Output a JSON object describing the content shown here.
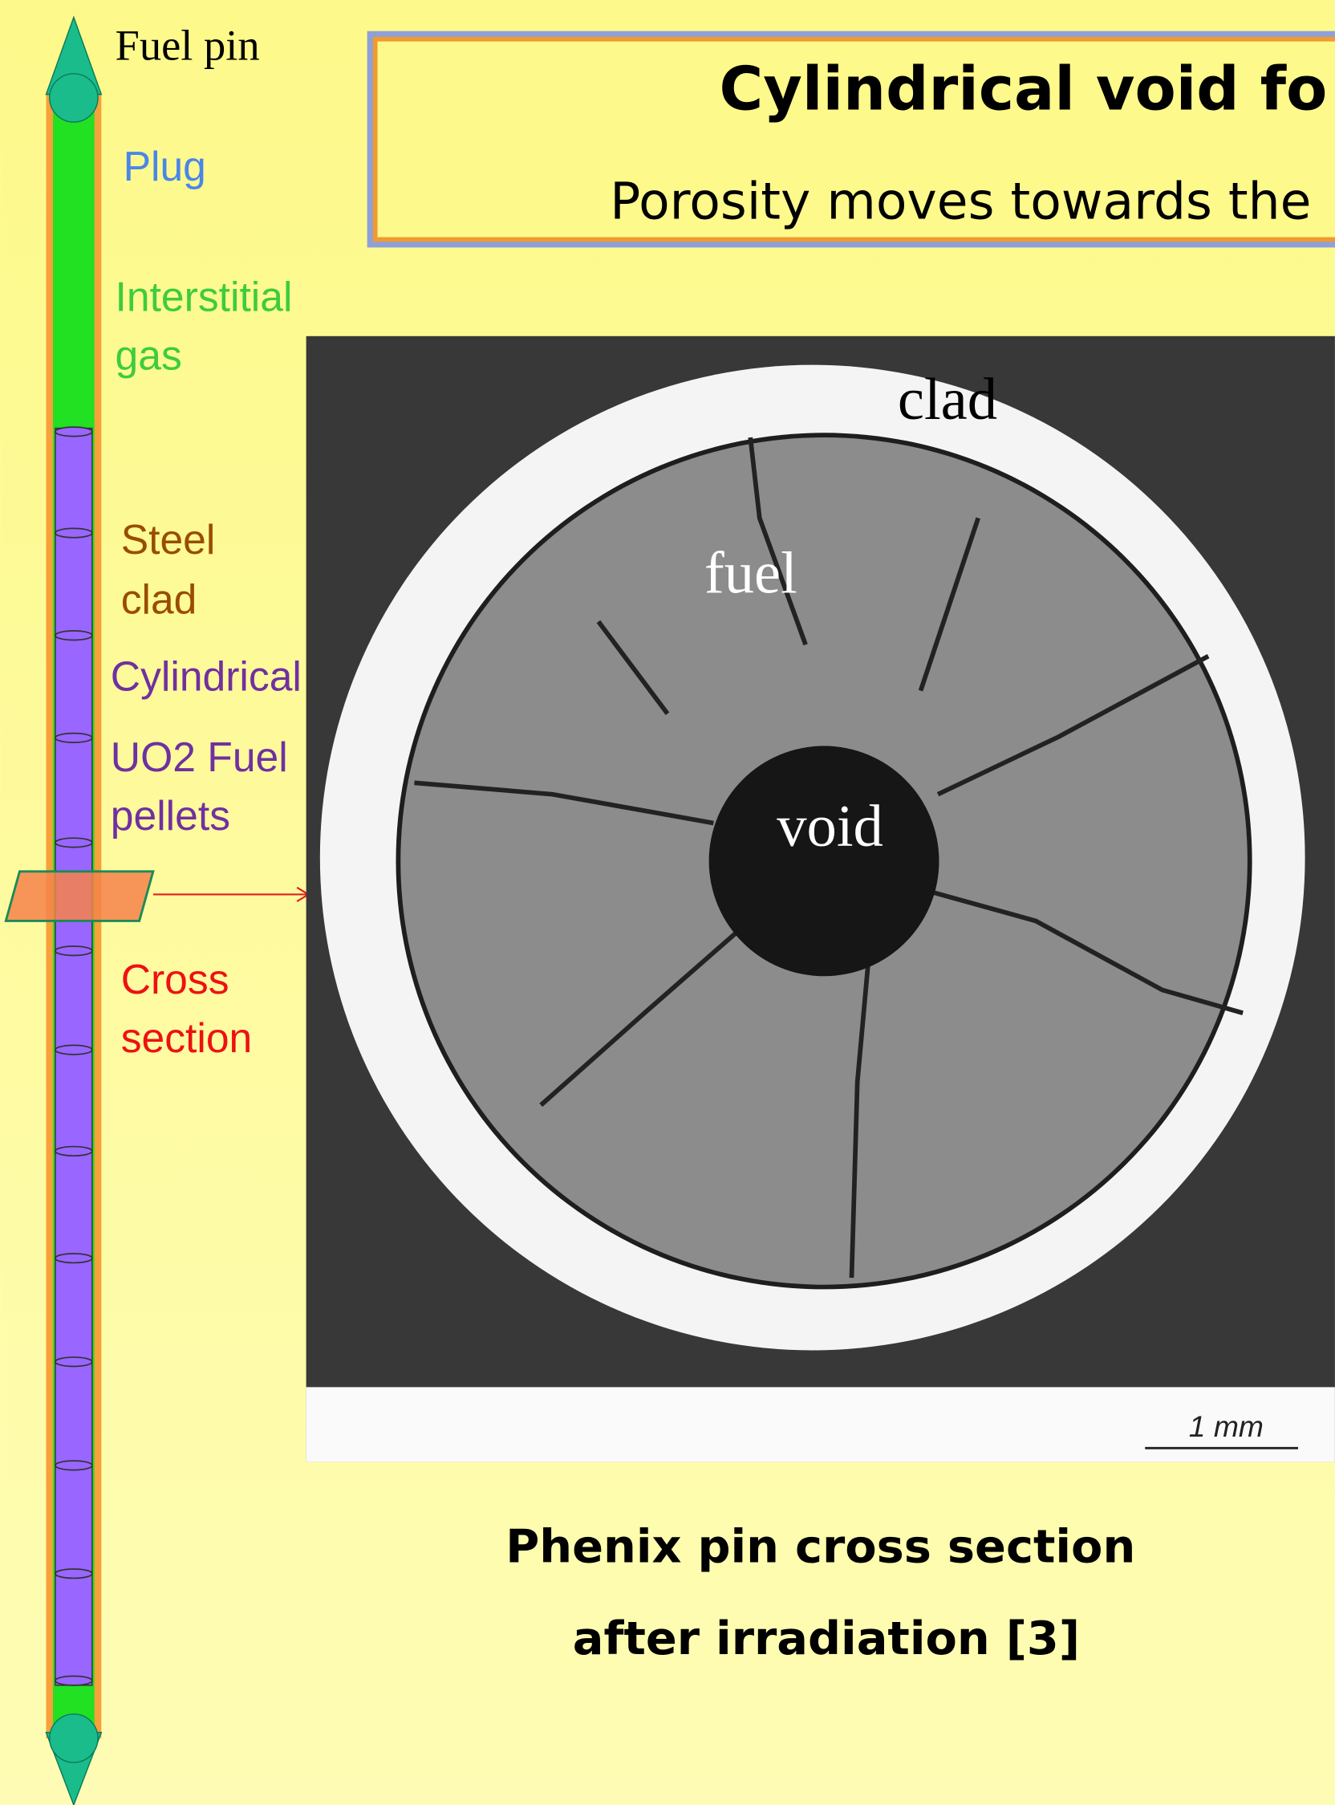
{
  "pin": {
    "title": "Fuel pin",
    "labels": {
      "plug": "Plug",
      "gas": [
        "Interstitial",
        "gas"
      ],
      "clad": [
        "Steel",
        "clad"
      ],
      "cylindrical": "Cylindrical",
      "pellets": [
        "UO2 Fuel",
        "pellets"
      ],
      "cross": [
        "Cross",
        "section"
      ]
    }
  },
  "header": {
    "title": "Cylindrical void fo",
    "subtitle": "Porosity moves towards the"
  },
  "photo": {
    "clad": "clad",
    "fuel": "fuel",
    "void": "void",
    "scale": "1 mm"
  },
  "caption": [
    "Phenix pin cross section",
    "after irradiation [3]"
  ]
}
